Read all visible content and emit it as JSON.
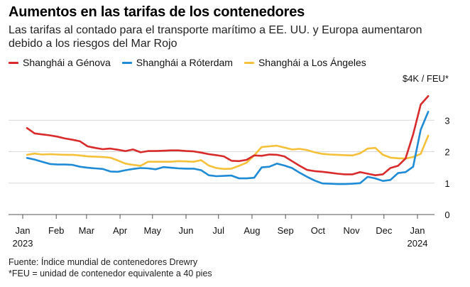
{
  "title": "Aumentos en las tarifas de los contenedores",
  "subtitle": "Las tarifas al contado para el transporte marítimo a EE. UU. y Europa aumentaron debido a los riesgos del Mar Rojo",
  "unit_label": "$4K / FEU*",
  "footnotes": {
    "source": "Fuente: Índice mundial de contenedores Drewry",
    "note": "*FEU = unidad de contenedor equivalente a 40 pies"
  },
  "colors": {
    "genova": "#d92b2b",
    "roterdam": "#1f8bd6",
    "los_angeles": "#f5c13a",
    "grid": "#d9d9d9",
    "baseline": "#555555"
  },
  "chart_data": {
    "type": "line",
    "title": "Aumentos en las tarifas de los contenedores",
    "xlabel": "",
    "ylabel": "$4K / FEU*",
    "ylim": [
      0,
      4
    ],
    "yticks": [
      0,
      1,
      2,
      3
    ],
    "grid": true,
    "legend_placement": "top-left",
    "xtick_labels": [
      {
        "label": "Jan",
        "sub": "2023"
      },
      {
        "label": "Feb",
        "sub": ""
      },
      {
        "label": "Mar",
        "sub": ""
      },
      {
        "label": "Apr",
        "sub": ""
      },
      {
        "label": "May",
        "sub": ""
      },
      {
        "label": "Jun",
        "sub": ""
      },
      {
        "label": "Jul",
        "sub": ""
      },
      {
        "label": "Aug",
        "sub": ""
      },
      {
        "label": "Sep",
        "sub": ""
      },
      {
        "label": "Oct",
        "sub": ""
      },
      {
        "label": "Nov",
        "sub": ""
      },
      {
        "label": "Dec",
        "sub": ""
      },
      {
        "label": "Jan",
        "sub": "2024"
      }
    ],
    "x": [
      "2023-01-05",
      "2023-01-12",
      "2023-01-19",
      "2023-01-26",
      "2023-02-02",
      "2023-02-09",
      "2023-02-16",
      "2023-02-23",
      "2023-03-02",
      "2023-03-09",
      "2023-03-16",
      "2023-03-23",
      "2023-03-30",
      "2023-04-06",
      "2023-04-13",
      "2023-04-20",
      "2023-04-27",
      "2023-05-04",
      "2023-05-11",
      "2023-05-18",
      "2023-05-25",
      "2023-06-01",
      "2023-06-08",
      "2023-06-15",
      "2023-06-22",
      "2023-06-29",
      "2023-07-06",
      "2023-07-13",
      "2023-07-20",
      "2023-07-27",
      "2023-08-03",
      "2023-08-10",
      "2023-08-17",
      "2023-08-24",
      "2023-08-31",
      "2023-09-07",
      "2023-09-14",
      "2023-09-21",
      "2023-09-28",
      "2023-10-05",
      "2023-10-12",
      "2023-10-19",
      "2023-10-26",
      "2023-11-02",
      "2023-11-09",
      "2023-11-16",
      "2023-11-23",
      "2023-11-30",
      "2023-12-07",
      "2023-12-14",
      "2023-12-21",
      "2023-12-28",
      "2024-01-04",
      "2024-01-11"
    ],
    "series": [
      {
        "name": "Shanghái a Génova",
        "color_key": "genova",
        "values": [
          2.75,
          2.58,
          2.55,
          2.52,
          2.48,
          2.42,
          2.38,
          2.33,
          2.17,
          2.12,
          2.08,
          2.1,
          2.06,
          2.02,
          2.07,
          1.98,
          2.02,
          2.02,
          2.03,
          2.04,
          2.04,
          2.02,
          2.01,
          1.97,
          1.92,
          1.89,
          1.85,
          1.71,
          1.7,
          1.74,
          1.88,
          1.87,
          1.91,
          1.9,
          1.85,
          1.7,
          1.55,
          1.42,
          1.38,
          1.36,
          1.33,
          1.3,
          1.28,
          1.28,
          1.35,
          1.3,
          1.25,
          1.28,
          1.48,
          1.55,
          1.78,
          2.55,
          3.5,
          3.77
        ]
      },
      {
        "name": "Shanghái a Róterdam",
        "color_key": "roterdam",
        "values": [
          1.8,
          1.75,
          1.68,
          1.61,
          1.59,
          1.59,
          1.58,
          1.52,
          1.49,
          1.47,
          1.45,
          1.37,
          1.36,
          1.41,
          1.45,
          1.48,
          1.47,
          1.44,
          1.51,
          1.49,
          1.47,
          1.46,
          1.46,
          1.41,
          1.25,
          1.22,
          1.23,
          1.24,
          1.15,
          1.15,
          1.17,
          1.5,
          1.52,
          1.62,
          1.56,
          1.48,
          1.33,
          1.2,
          1.08,
          0.99,
          0.98,
          0.97,
          0.97,
          0.98,
          1.0,
          1.2,
          1.15,
          1.07,
          1.1,
          1.32,
          1.35,
          1.52,
          2.7,
          3.27
        ]
      },
      {
        "name": "Shanghái a Los Ángeles",
        "color_key": "los_angeles",
        "values": [
          1.9,
          1.94,
          1.91,
          1.92,
          1.91,
          1.9,
          1.9,
          1.88,
          1.85,
          1.84,
          1.83,
          1.81,
          1.72,
          1.62,
          1.58,
          1.55,
          1.68,
          1.68,
          1.68,
          1.68,
          1.7,
          1.69,
          1.68,
          1.73,
          1.56,
          1.48,
          1.45,
          1.46,
          1.55,
          1.65,
          1.88,
          2.15,
          2.17,
          2.19,
          2.13,
          2.07,
          2.09,
          2.05,
          1.98,
          1.93,
          1.91,
          1.9,
          1.89,
          1.88,
          1.95,
          2.1,
          2.12,
          1.9,
          1.81,
          1.79,
          1.78,
          1.83,
          1.93,
          2.51
        ]
      }
    ]
  }
}
